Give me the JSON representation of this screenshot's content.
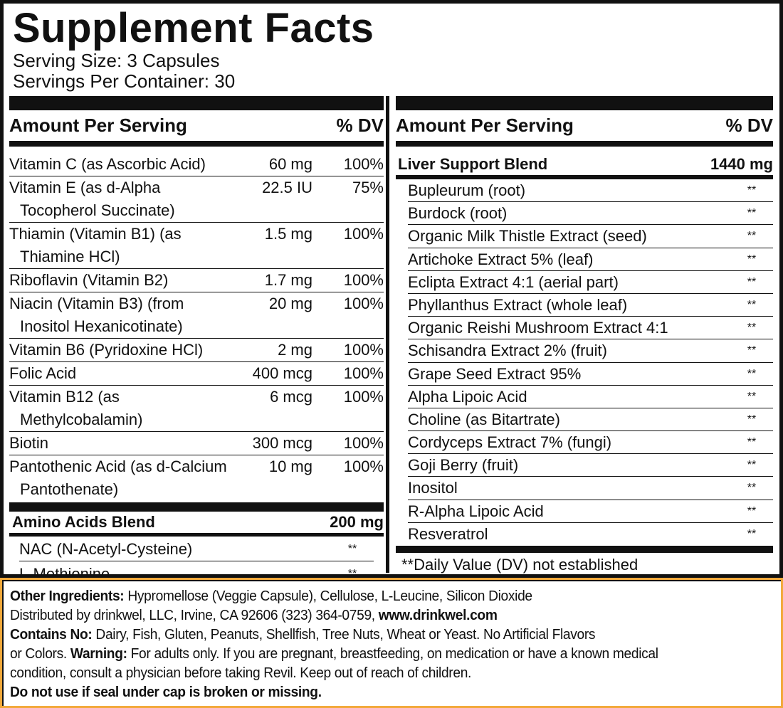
{
  "header": {
    "title": "Supplement Facts",
    "serving_size": "Serving Size: 3 Capsules",
    "servings_per_container": "Servings Per Container: 30"
  },
  "left": {
    "header": {
      "amount": "Amount Per Serving",
      "dv": "% DV"
    },
    "rows": [
      {
        "name": [
          "Vitamin C (as Ascorbic Acid)"
        ],
        "amount": "60 mg",
        "dv": "100%"
      },
      {
        "name": [
          "Vitamin E (as d-Alpha",
          "Tocopherol Succinate)"
        ],
        "amount": "22.5 IU",
        "dv": "75%"
      },
      {
        "name": [
          "Thiamin (Vitamin B1) (as",
          "Thiamine HCl)"
        ],
        "amount": "1.5 mg",
        "dv": "100%"
      },
      {
        "name": [
          "Riboflavin (Vitamin B2)"
        ],
        "amount": "1.7 mg",
        "dv": "100%"
      },
      {
        "name": [
          "Niacin (Vitamin B3) (from",
          "Inositol Hexanicotinate)"
        ],
        "amount": "20 mg",
        "dv": "100%"
      },
      {
        "name": [
          "Vitamin B6 (Pyridoxine HCl)"
        ],
        "amount": "2 mg",
        "dv": "100%"
      },
      {
        "name": [
          "Folic Acid"
        ],
        "amount": "400 mcg",
        "dv": "100%"
      },
      {
        "name": [
          "Vitamin B12 (as",
          "Methylcobalamin)"
        ],
        "amount": "6 mcg",
        "dv": "100%"
      },
      {
        "name": [
          "Biotin"
        ],
        "amount": "300 mcg",
        "dv": "100%"
      },
      {
        "name": [
          "Pantothenic Acid (as d-Calcium",
          "Pantothenate)"
        ],
        "amount": "10 mg",
        "dv": "100%"
      }
    ],
    "blend": {
      "name": "Amino Acids Blend",
      "amount": "200 mg",
      "items": [
        {
          "name": "NAC (N-Acetyl-Cysteine)",
          "dv": "**"
        },
        {
          "name": "L-Methionine",
          "dv": "**"
        }
      ]
    }
  },
  "right": {
    "header": {
      "amount": "Amount Per Serving",
      "dv": "% DV"
    },
    "blend": {
      "name": "Liver Support Blend",
      "amount": "1440 mg",
      "items": [
        {
          "name": "Bupleurum (root)",
          "dv": "**"
        },
        {
          "name": "Burdock (root)",
          "dv": "**"
        },
        {
          "name": "Organic Milk Thistle Extract (seed)",
          "dv": "**"
        },
        {
          "name": "Artichoke Extract 5% (leaf)",
          "dv": "**"
        },
        {
          "name": "Eclipta Extract 4:1 (aerial part)",
          "dv": "**"
        },
        {
          "name": "Phyllanthus Extract (whole leaf)",
          "dv": "**"
        },
        {
          "name": "Organic Reishi Mushroom Extract 4:1",
          "dv": "**"
        },
        {
          "name": "Schisandra Extract 2% (fruit)",
          "dv": "**"
        },
        {
          "name": "Grape Seed Extract 95%",
          "dv": "**"
        },
        {
          "name": "Alpha Lipoic Acid",
          "dv": "**"
        },
        {
          "name": "Choline (as Bitartrate)",
          "dv": "**"
        },
        {
          "name": "Cordyceps Extract 7% (fungi)",
          "dv": "**"
        },
        {
          "name": "Goji Berry (fruit)",
          "dv": "**"
        },
        {
          "name": "Inositol",
          "dv": "**"
        },
        {
          "name": "R-Alpha Lipoic Acid",
          "dv": "**"
        },
        {
          "name": "Resveratrol",
          "dv": "**"
        }
      ]
    },
    "note": "**Daily Value (DV) not established"
  },
  "footer": [
    [
      {
        "text": "Other Ingredients:",
        "bold": true
      },
      {
        "text": " Hypromellose (Veggie Capsule), Cellulose, L-Leucine, Silicon Dioxide",
        "bold": false
      }
    ],
    [
      {
        "text": "Distributed by drinkwel, LLC, Irvine, CA 92606 (323) 364-0759, ",
        "bold": false
      },
      {
        "text": "www.drinkwel.com",
        "bold": true
      }
    ],
    [
      {
        "text": "Contains No:",
        "bold": true
      },
      {
        "text": " Dairy, Fish, Gluten, Peanuts, Shellfish, Tree Nuts, Wheat or Yeast. No Artificial Flavors",
        "bold": false
      }
    ],
    [
      {
        "text": "or Colors. ",
        "bold": false
      },
      {
        "text": "Warning:",
        "bold": true
      },
      {
        "text": " For adults only. If you are pregnant, breastfeeding, on medication or have a known medical",
        "bold": false
      }
    ],
    [
      {
        "text": "condition, consult a physician before taking Revil. Keep out of reach of children.",
        "bold": false
      }
    ],
    [
      {
        "text": "Do not use if seal under cap is broken or missing.",
        "bold": true
      }
    ]
  ]
}
